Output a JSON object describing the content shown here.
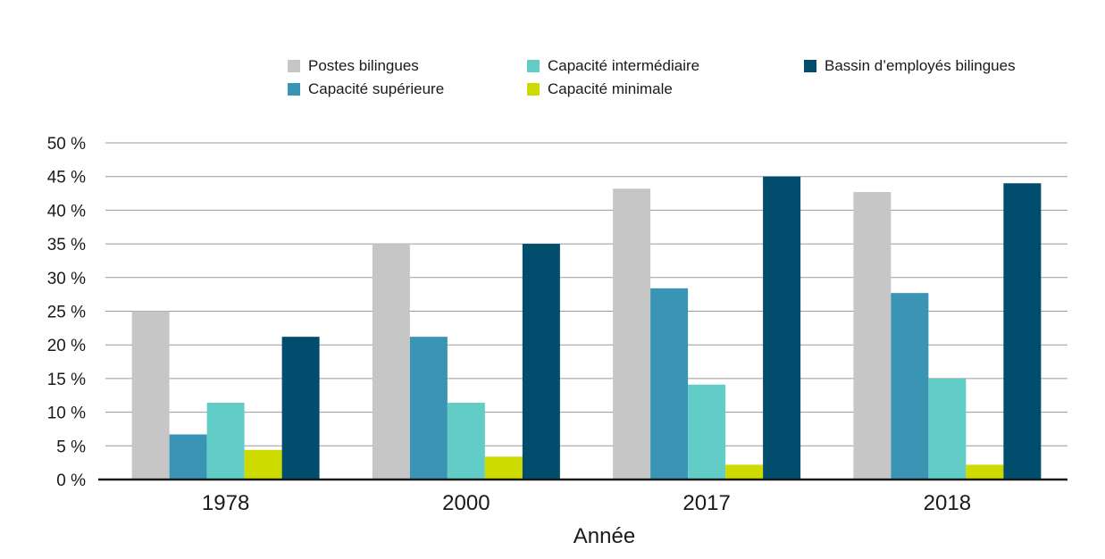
{
  "chart_data": {
    "type": "bar",
    "title": "",
    "xlabel": "Année",
    "ylabel": "",
    "categories": [
      "1978",
      "2000",
      "2017",
      "2018"
    ],
    "series": [
      {
        "name": "Postes bilingues",
        "color": "#c6c6c6",
        "values": [
          25,
          35,
          43.2,
          42.7
        ]
      },
      {
        "name": "Capacité supérieure",
        "color": "#3a95b5",
        "values": [
          6.7,
          21.2,
          28.4,
          27.7
        ]
      },
      {
        "name": "Capacité intermédiaire",
        "color": "#62ccc6",
        "values": [
          11.4,
          11.4,
          14.1,
          15.0
        ]
      },
      {
        "name": "Capacité minimale",
        "color": "#cddb00",
        "values": [
          4.4,
          3.4,
          2.2,
          2.2
        ]
      },
      {
        "name": "Bassin d’employés bilingues",
        "color": "#004d6e",
        "values": [
          21.2,
          35,
          45,
          44
        ]
      }
    ],
    "ylim": [
      0,
      50
    ],
    "yticks": [
      "0 %",
      "5 %",
      "10 %",
      "15 %",
      "20 %",
      "25 %",
      "30 %",
      "35 %",
      "40 %",
      "45 %",
      "50 %"
    ],
    "grid": true,
    "legend_position": "top"
  }
}
